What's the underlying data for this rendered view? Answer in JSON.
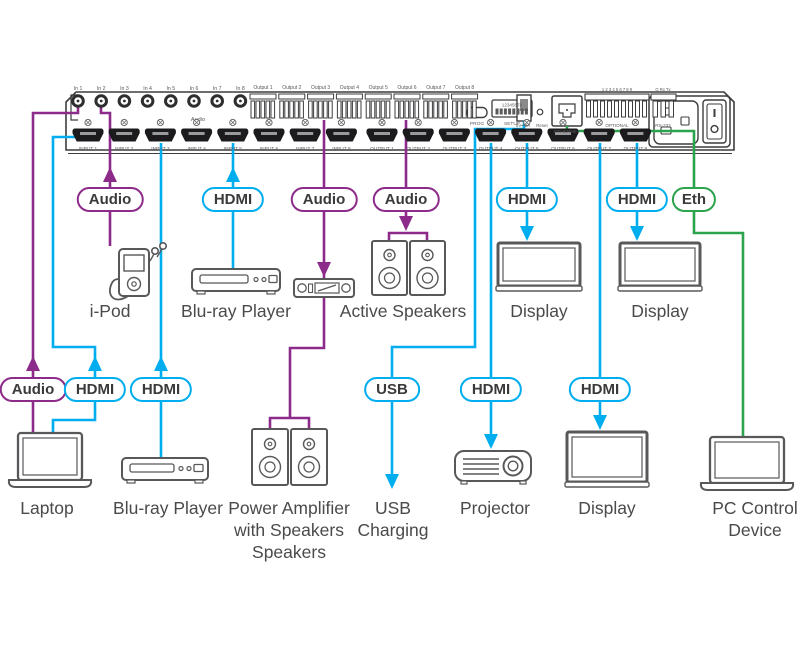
{
  "panel": {
    "audio_inputs": [
      "In 1",
      "In 2",
      "In 3",
      "In 4",
      "In 5",
      "In 6",
      "In 7",
      "In 8"
    ],
    "audio_section_label": "Audio",
    "audio_outputs": [
      "Output 1",
      "Output 2",
      "Output 3",
      "Output 4",
      "Output 5",
      "Output 6",
      "Output 7",
      "Output 8"
    ],
    "hdmi_inputs": [
      "INPUT 1",
      "INPUT 2",
      "INPUT 3",
      "INPUT 4",
      "INPUT 5",
      "INPUT 6",
      "INPUT 7",
      "INPUT 8"
    ],
    "hdmi_outputs": [
      "OUTPUT 1",
      "OUTPUT 2",
      "OUTPUT 3",
      "OUTPUT 4",
      "OUTPUT 5",
      "OUTPUT 6",
      "OUTPUT 7",
      "OUTPUT 8"
    ],
    "prog_label": "PROG",
    "setup_label": "SETUP",
    "dip_numbers": "12345678",
    "usb_port_label": "5V⎓2A",
    "reset_label": "Reset",
    "ethernet_label": "ETHERNET",
    "optional_pins": "1 2 3 4 5 6 7 8 9",
    "optional_label": "OPTIONAL",
    "rs232_pins": "G Rx Tx",
    "rs232_label": "RS-232"
  },
  "colors": {
    "audio": "#8d2b8a",
    "hdmi": "#00aeef",
    "usb": "#00aeef",
    "ethernet": "#2ca34d",
    "outline": "#4d4d4f"
  },
  "pills": {
    "r1_ipod_audio": "Audio",
    "r1_bluray_hdmi": "HDMI",
    "r1_amp_audio": "Audio",
    "r1_speakers_audio": "Audio",
    "r1_display1_hdmi": "HDMI",
    "r1_display2_hdmi": "HDMI",
    "r1_eth": "Eth",
    "r2_laptop_audio": "Audio",
    "r2_laptop_hdmi": "HDMI",
    "r2_bluray_hdmi": "HDMI",
    "r2_usb": "USB",
    "r2_projector_hdmi": "HDMI",
    "r2_display3_hdmi": "HDMI"
  },
  "devices": {
    "ipod": "i-Pod",
    "bluray_top": "Blu-ray Player",
    "active_speakers": "Active Speakers",
    "display1": "Display",
    "display2": "Display",
    "laptop": "Laptop",
    "bluray_bottom": "Blu-ray Player",
    "power_amp_line1": "Power Amplifier",
    "power_amp_line2": "with Speakers",
    "power_amp_line3": "Speakers",
    "usb_line1": "USB",
    "usb_line2": "Charging",
    "projector": "Projector",
    "display3": "Display",
    "pc_line1": "PC Control",
    "pc_line2": "Device"
  }
}
